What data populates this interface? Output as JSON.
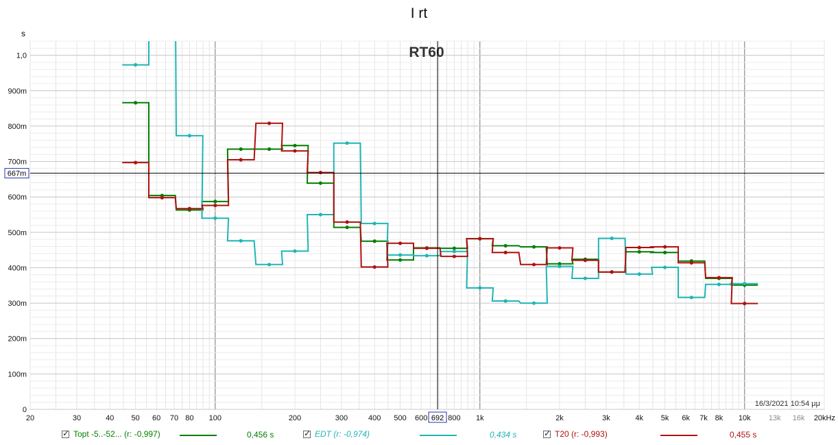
{
  "window": {
    "title": "I rt"
  },
  "timestamp": "16/3/2021 10:54 μμ",
  "cursor": {
    "x_label": "692",
    "y_label": "667m",
    "x": 692,
    "y": 0.667
  },
  "chart_data": {
    "type": "line",
    "title": "RT60",
    "ylabel": "s",
    "xlabel": "",
    "x_scale": "log",
    "xlim": [
      20,
      20000
    ],
    "ylim": [
      0,
      1.04
    ],
    "x_ticks": [
      {
        "v": 20,
        "label": "20"
      },
      {
        "v": 30,
        "label": "30"
      },
      {
        "v": 40,
        "label": "40"
      },
      {
        "v": 50,
        "label": "50"
      },
      {
        "v": 60,
        "label": "60"
      },
      {
        "v": 70,
        "label": "70"
      },
      {
        "v": 80,
        "label": "80"
      },
      {
        "v": 100,
        "label": "100"
      },
      {
        "v": 200,
        "label": "200"
      },
      {
        "v": 300,
        "label": "300"
      },
      {
        "v": 400,
        "label": "400"
      },
      {
        "v": 500,
        "label": "500"
      },
      {
        "v": 600,
        "label": "600"
      },
      {
        "v": 800,
        "label": "800"
      },
      {
        "v": 1000,
        "label": "1k"
      },
      {
        "v": 2000,
        "label": "2k"
      },
      {
        "v": 3000,
        "label": "3k"
      },
      {
        "v": 4000,
        "label": "4k"
      },
      {
        "v": 5000,
        "label": "5k"
      },
      {
        "v": 6000,
        "label": "6k"
      },
      {
        "v": 7000,
        "label": "7k"
      },
      {
        "v": 8000,
        "label": "8k"
      },
      {
        "v": 10000,
        "label": "10k"
      },
      {
        "v": 13000,
        "label": "13k",
        "muted": true
      },
      {
        "v": 16000,
        "label": "16k",
        "muted": true
      },
      {
        "v": 20000,
        "label": "20kHz"
      }
    ],
    "y_ticks": [
      {
        "v": 0,
        "label": "0"
      },
      {
        "v": 0.1,
        "label": "100m"
      },
      {
        "v": 0.2,
        "label": "200m"
      },
      {
        "v": 0.3,
        "label": "300m"
      },
      {
        "v": 0.4,
        "label": "400m"
      },
      {
        "v": 0.5,
        "label": "500m"
      },
      {
        "v": 0.6,
        "label": "600m"
      },
      {
        "v": 0.7,
        "label": "700m"
      },
      {
        "v": 0.8,
        "label": "800m"
      },
      {
        "v": 0.9,
        "label": "900m"
      },
      {
        "v": 1.0,
        "label": "1,0"
      }
    ],
    "x": [
      50,
      63,
      80,
      100,
      125,
      160,
      200,
      250,
      315,
      400,
      500,
      630,
      800,
      1000,
      1250,
      1600,
      2000,
      2500,
      3150,
      4000,
      5000,
      6300,
      8000,
      10000
    ],
    "series": [
      {
        "name": "Topt -5..-52... (r: -0,997)",
        "color": "#007f00",
        "legend_value": "0,456 s",
        "italic": false,
        "values": [
          0.866,
          0.604,
          0.563,
          0.587,
          0.735,
          0.735,
          0.745,
          0.639,
          0.514,
          0.475,
          0.422,
          0.456,
          0.455,
          0.482,
          0.462,
          0.459,
          0.411,
          0.424,
          0.388,
          0.445,
          0.443,
          0.419,
          0.37,
          0.351
        ]
      },
      {
        "name": "EDT (r: -0,974)",
        "color": "#1fb5b5",
        "legend_value": "0,434 s",
        "italic": true,
        "values": [
          0.973,
          1.2,
          0.773,
          0.54,
          0.476,
          0.409,
          0.447,
          0.55,
          0.752,
          0.525,
          0.436,
          0.434,
          0.446,
          0.343,
          0.306,
          0.3,
          0.404,
          0.37,
          0.483,
          0.382,
          0.401,
          0.316,
          0.353,
          0.355
        ]
      },
      {
        "name": "T20 (r: -0,993)",
        "color": "#b01010",
        "legend_value": "0,455 s",
        "italic": false,
        "values": [
          0.697,
          0.598,
          0.567,
          0.576,
          0.705,
          0.808,
          0.73,
          0.669,
          0.529,
          0.402,
          0.469,
          0.455,
          0.432,
          0.482,
          0.443,
          0.409,
          0.456,
          0.421,
          0.388,
          0.457,
          0.459,
          0.414,
          0.372,
          0.299
        ]
      }
    ]
  }
}
